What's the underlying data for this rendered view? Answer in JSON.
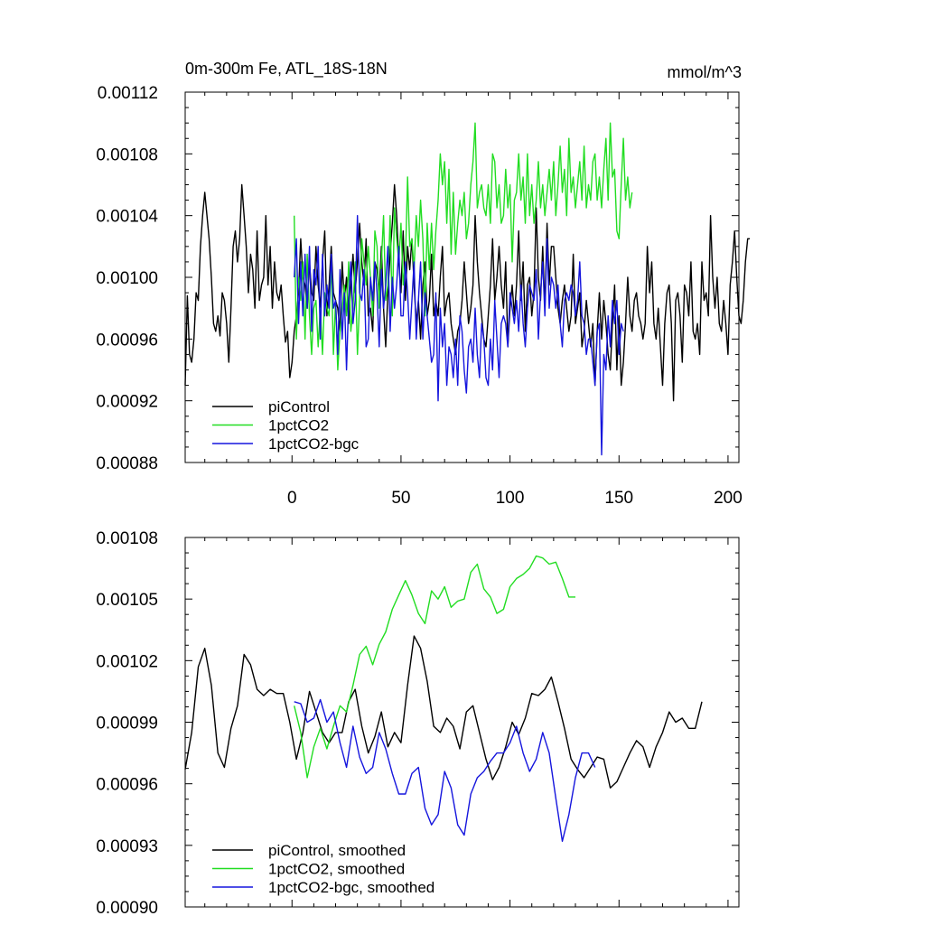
{
  "chart_data": [
    {
      "type": "line",
      "title": "0m-300m Fe, ATL_18S-18N",
      "units": "mmol/m^3",
      "ylim": [
        0.00088,
        0.00112
      ],
      "xlim": [
        -49,
        205
      ],
      "yticks": [
        "0.00088",
        "0.00092",
        "0.00096",
        "0.00100",
        "0.00104",
        "0.00108",
        "0.00112"
      ],
      "xticks": [
        "0",
        "50",
        "100",
        "150",
        "200"
      ],
      "legend_position": "bottom-left",
      "series": [
        {
          "name": "piControl",
          "color": "#000000",
          "x_start": -49,
          "x_step": 1,
          "values": [
            0.00093,
            0.000988,
            0.00095,
            0.000945,
            0.00096,
            0.00099,
            0.000985,
            0.00102,
            0.00104,
            0.001055,
            0.00104,
            0.001025,
            0.001,
            0.00097,
            0.000965,
            0.000975,
            0.000962,
            0.00099,
            0.000985,
            0.00097,
            0.000945,
            0.00098,
            0.00102,
            0.00103,
            0.00101,
            0.001025,
            0.00106,
            0.00104,
            0.00102,
            0.00099,
            0.001015,
            0.001005,
            0.00098,
            0.00103,
            0.000985,
            0.000995,
            0.001,
            0.00104,
            0.000995,
            0.00102,
            0.00098,
            0.00101,
            0.00099,
            0.000985,
            0.000995,
            0.000975,
            0.000958,
            0.000965,
            0.000935,
            0.000945,
            0.000965,
            0.000975,
            0.00099,
            0.001025,
            0.001,
            0.000995,
            0.00098,
            0.00101,
            0.00099,
            0.000985,
            0.00102,
            0.000995,
            0.00098,
            0.00101,
            0.00103,
            0.000975,
            0.000995,
            0.00102,
            0.00099,
            0.000985,
            0.00098,
            0.000965,
            0.00101,
            0.000985,
            0.001,
            0.00097,
            0.000995,
            0.001015,
            0.00099,
            0.00101,
            0.001035,
            0.00101,
            0.000995,
            0.001025,
            0.000975,
            0.00098,
            0.000965,
            0.00101,
            0.001005,
            0.00099,
            0.00102,
            0.00098,
            0.000955,
            0.00099,
            0.001015,
            0.001035,
            0.00106,
            0.00104,
            0.00101,
            0.00099,
            0.00103,
            0.000985,
            0.00102,
            0.001005,
            0.001025,
            0.000995,
            0.00097,
            0.000985,
            0.00096,
            0.000995,
            0.00101,
            0.000975,
            0.000985,
            0.001015,
            0.000975,
            0.000985,
            0.000975,
            0.001,
            0.00102,
            0.000975,
            0.000985,
            0.00099,
            0.00097,
            0.00096,
            0.00095,
            0.000965,
            0.00097,
            0.000985,
            0.00101,
            0.00099,
            0.00097,
            0.00098,
            0.000995,
            0.00104,
            0.00101,
            0.00099,
            0.000975,
            0.00096,
            0.000955,
            0.000975,
            0.000995,
            0.001025,
            0.000985,
            0.001,
            0.00102,
            0.000995,
            0.00098,
            0.00101,
            0.000955,
            0.00098,
            0.000995,
            0.000975,
            0.000995,
            0.00103,
            0.000985,
            0.00101,
            0.000965,
            0.000995,
            0.001,
            0.000975,
            0.00099,
            0.001045,
            0.001,
            0.000985,
            0.00102,
            0.00098,
            0.001035,
            0.000995,
            0.00102,
            0.00102,
            0.001,
            0.00098,
            0.00097,
            0.000985,
            0.000995,
            0.00098,
            0.000965,
            0.000975,
            0.001015,
            0.00097,
            0.00098,
            0.00099,
            0.000955,
            0.000965,
            0.000985,
            0.00097,
            0.000955,
            0.00097,
            0.00093,
            0.000965,
            0.00099,
            0.00096,
            0.000985,
            0.00097,
            0.00095,
            0.00094,
            0.00097,
            0.000995,
            0.00094,
            0.000975,
            0.00093,
            0.000945,
            0.00097,
            0.001,
            0.000975,
            0.000965,
            0.000985,
            0.00099,
            0.000975,
            0.00097,
            0.00096,
            0.00097,
            0.00102,
            0.00099,
            0.00101,
            0.00097,
            0.00096,
            0.00098,
            0.000955,
            0.00093,
            0.00097,
            0.00099,
            0.000995,
            0.00097,
            0.00092,
            0.000985,
            0.00099,
            0.000975,
            0.000945,
            0.000995,
            0.00099,
            0.000975,
            0.00101,
            0.000965,
            0.00096,
            0.00097,
            0.00095,
            0.00101,
            0.000985,
            0.00099,
            0.000975,
            0.00104,
            0.001,
            0.00098,
            0.001,
            0.00097,
            0.000965,
            0.000985,
            0.00097,
            0.00095,
            0.000995,
            0.00101,
            0.00103,
            0.001,
            0.000975,
            0.00097,
            0.000985,
            0.00101,
            0.001025,
            0.001025
          ]
        },
        {
          "name": "1pctCO2",
          "color": "#22dd22",
          "x_start": 1,
          "x_step": 1,
          "values": [
            0.00104,
            0.00096,
            0.001,
            0.000985,
            0.00101,
            0.00096,
            0.001015,
            0.000975,
            0.00095,
            0.00098,
            0.000985,
            0.000955,
            0.00098,
            0.00095,
            0.00099,
            0.00098,
            0.000975,
            0.00101,
            0.00095,
            0.000985,
            0.00094,
            0.000965,
            0.00098,
            0.000995,
            0.000975,
            0.00101,
            0.000965,
            0.00098,
            0.00101,
            0.00095,
            0.000985,
            0.001025,
            0.00101,
            0.000995,
            0.00102,
            0.001,
            0.000975,
            0.00103,
            0.00102,
            0.00098,
            0.00101,
            0.00104,
            0.000985,
            0.000995,
            0.00104,
            0.000975,
            0.001045,
            0.001025,
            0.00101,
            0.001035,
            0.000995,
            0.00101,
            0.001065,
            0.00102,
            0.001025,
            0.001005,
            0.00104,
            0.00102,
            0.00105,
            0.001025,
            0.000975,
            0.001035,
            0.001005,
            0.001035,
            0.001005,
            0.00103,
            0.00105,
            0.00108,
            0.00106,
            0.001075,
            0.001035,
            0.00107,
            0.001015,
            0.001055,
            0.001015,
            0.001035,
            0.00105,
            0.00104,
            0.001055,
            0.001025,
            0.001035,
            0.00106,
            0.001075,
            0.0011,
            0.001045,
            0.001055,
            0.00106,
            0.001045,
            0.00104,
            0.00106,
            0.001035,
            0.00108,
            0.001075,
            0.001045,
            0.00106,
            0.001035,
            0.00104,
            0.00107,
            0.001045,
            0.00106,
            0.00101,
            0.00105,
            0.001055,
            0.00108,
            0.00105,
            0.001065,
            0.001035,
            0.00108,
            0.00104,
            0.00106,
            0.001035,
            0.00105,
            0.001075,
            0.001045,
            0.00106,
            0.00104,
            0.001055,
            0.00107,
            0.00105,
            0.001075,
            0.00104,
            0.00106,
            0.001085,
            0.001055,
            0.00107,
            0.00104,
            0.00109,
            0.001055,
            0.001065,
            0.001045,
            0.00106,
            0.001075,
            0.00105,
            0.001085,
            0.001045,
            0.00106,
            0.00105,
            0.001075,
            0.00108,
            0.00105,
            0.001065,
            0.001045,
            0.00107,
            0.00109,
            0.00105,
            0.0011,
            0.001065,
            0.00107,
            0.00103,
            0.001025,
            0.00106,
            0.00109,
            0.00105,
            0.001065,
            0.001045,
            0.001055
          ]
        },
        {
          "name": "1pctCO2-bgc",
          "color": "#1515dd",
          "x_start": 1,
          "x_step": 1,
          "values": [
            0.001,
            0.001025,
            0.00097,
            0.00101,
            0.000975,
            0.001015,
            0.00098,
            0.00102,
            0.000965,
            0.001005,
            0.000995,
            0.00102,
            0.00096,
            0.001015,
            0.000975,
            0.000995,
            0.00098,
            0.001015,
            0.00098,
            0.000985,
            0.00095,
            0.001005,
            0.00096,
            0.00099,
            0.00094,
            0.000985,
            0.00101,
            0.00097,
            0.000985,
            0.00104,
            0.00099,
            0.000985,
            0.001005,
            0.000955,
            0.00096,
            0.001,
            0.000985,
            0.00101,
            0.00099,
            0.000955,
            0.001005,
            0.00098,
            0.000995,
            0.00102,
            0.000965,
            0.001,
            0.00098,
            0.000995,
            0.00102,
            0.000975,
            0.000975,
            0.00101,
            0.00099,
            0.00096,
            0.000985,
            0.00101,
            0.00096,
            0.000985,
            0.00101,
            0.00096,
            0.00099,
            0.000975,
            0.00096,
            0.000945,
            0.00095,
            0.00099,
            0.00092,
            0.00098,
            0.000955,
            0.00097,
            0.00093,
            0.000955,
            0.00095,
            0.000935,
            0.00096,
            0.00093,
            0.000975,
            0.000965,
            0.00094,
            0.000925,
            0.000955,
            0.00096,
            0.000945,
            0.00098,
            0.00095,
            0.000935,
            0.00097,
            0.00096,
            0.000935,
            0.00093,
            0.00096,
            0.00094,
            0.000985,
            0.00096,
            0.000935,
            0.00097,
            0.000975,
            0.00097,
            0.000955,
            0.00099,
            0.00098,
            0.00097,
            0.000985,
            0.000965,
            0.000995,
            0.00097,
            0.000955,
            0.00098,
            0.000995,
            0.00099,
            0.000985,
            0.001005,
            0.00096,
            0.00099,
            0.00101,
            0.000975,
            0.001025,
            0.00098,
            0.001,
            0.000995,
            0.00098,
            0.000995,
            0.00097,
            0.000955,
            0.000985,
            0.00099,
            0.000985,
            0.000995,
            0.00099,
            0.000975,
            0.000985,
            0.00101,
            0.000975,
            0.00097,
            0.00095,
            0.00096,
            0.00096,
            0.000945,
            0.00093,
            0.000965,
            0.00097,
            0.000885,
            0.00095,
            0.00094,
            0.000975,
            0.000955,
            0.000985,
            0.00097,
            0.000985,
            0.00095,
            0.00097,
            0.000965
          ]
        }
      ]
    },
    {
      "type": "line",
      "title": "",
      "ylim": [
        0.0009,
        0.00108
      ],
      "xlim": [
        -49,
        205
      ],
      "yticks": [
        "0.00090",
        "0.00093",
        "0.00096",
        "0.00099",
        "0.00102",
        "0.00105",
        "0.00108"
      ],
      "xticks": [],
      "legend_position": "bottom-left",
      "series": [
        {
          "name": "piControl, smoothed",
          "color": "#000000",
          "x_start": -49,
          "x_step": 3,
          "values": [
            0.000967,
            0.000985,
            0.001017,
            0.001026,
            0.001008,
            0.000975,
            0.000968,
            0.000987,
            0.000998,
            0.001023,
            0.001018,
            0.001006,
            0.001003,
            0.001006,
            0.001004,
            0.001004,
            0.00099,
            0.000972,
            0.000985,
            0.001005,
            0.000995,
            0.000985,
            0.00098,
            0.000985,
            0.000985,
            0.001,
            0.001006,
            0.000988,
            0.000975,
            0.000983,
            0.000995,
            0.000978,
            0.000985,
            0.00098,
            0.001008,
            0.001032,
            0.001026,
            0.00101,
            0.000988,
            0.000985,
            0.000992,
            0.000988,
            0.000977,
            0.000995,
            0.000998,
            0.000985,
            0.000972,
            0.000962,
            0.000968,
            0.000978,
            0.00099,
            0.000984,
            0.000992,
            0.001004,
            0.001003,
            0.001006,
            0.001012,
            0.001,
            0.000987,
            0.000972,
            0.000967,
            0.000963,
            0.000968,
            0.000973,
            0.000972,
            0.000958,
            0.000961,
            0.000968,
            0.000975,
            0.000981,
            0.000978,
            0.000968,
            0.000978,
            0.000985,
            0.000995,
            0.00099,
            0.000992,
            0.000987,
            0.000987,
            0.001
          ]
        },
        {
          "name": "1pctCO2, smoothed",
          "color": "#22dd22",
          "x_start": 1,
          "x_step": 3,
          "values": [
            0.000998,
            0.000985,
            0.000963,
            0.000978,
            0.000987,
            0.000977,
            0.000988,
            0.000998,
            0.000995,
            0.001008,
            0.001023,
            0.001027,
            0.001018,
            0.001028,
            0.001034,
            0.001045,
            0.001052,
            0.001059,
            0.001052,
            0.001043,
            0.001038,
            0.001054,
            0.00105,
            0.001056,
            0.001046,
            0.001049,
            0.00105,
            0.001063,
            0.001067,
            0.001055,
            0.001051,
            0.001043,
            0.001045,
            0.001056,
            0.00106,
            0.001062,
            0.001065,
            0.001071,
            0.00107,
            0.001067,
            0.001068,
            0.00106,
            0.001051,
            0.001051
          ]
        },
        {
          "name": "1pctCO2-bgc, smoothed",
          "color": "#1515dd",
          "x_start": 1,
          "x_step": 3,
          "values": [
            0.001,
            0.000999,
            0.00099,
            0.000992,
            0.001001,
            0.00099,
            0.000995,
            0.00098,
            0.000968,
            0.000988,
            0.000973,
            0.000965,
            0.000968,
            0.000985,
            0.000977,
            0.000965,
            0.000955,
            0.000955,
            0.000965,
            0.000968,
            0.000948,
            0.00094,
            0.000945,
            0.000966,
            0.000958,
            0.00094,
            0.000935,
            0.000955,
            0.000963,
            0.000966,
            0.000971,
            0.000975,
            0.000975,
            0.00098,
            0.000988,
            0.000975,
            0.000966,
            0.000972,
            0.000985,
            0.000975,
            0.000953,
            0.000932,
            0.000945,
            0.000963,
            0.000975,
            0.000975,
            0.000968
          ]
        }
      ]
    }
  ]
}
